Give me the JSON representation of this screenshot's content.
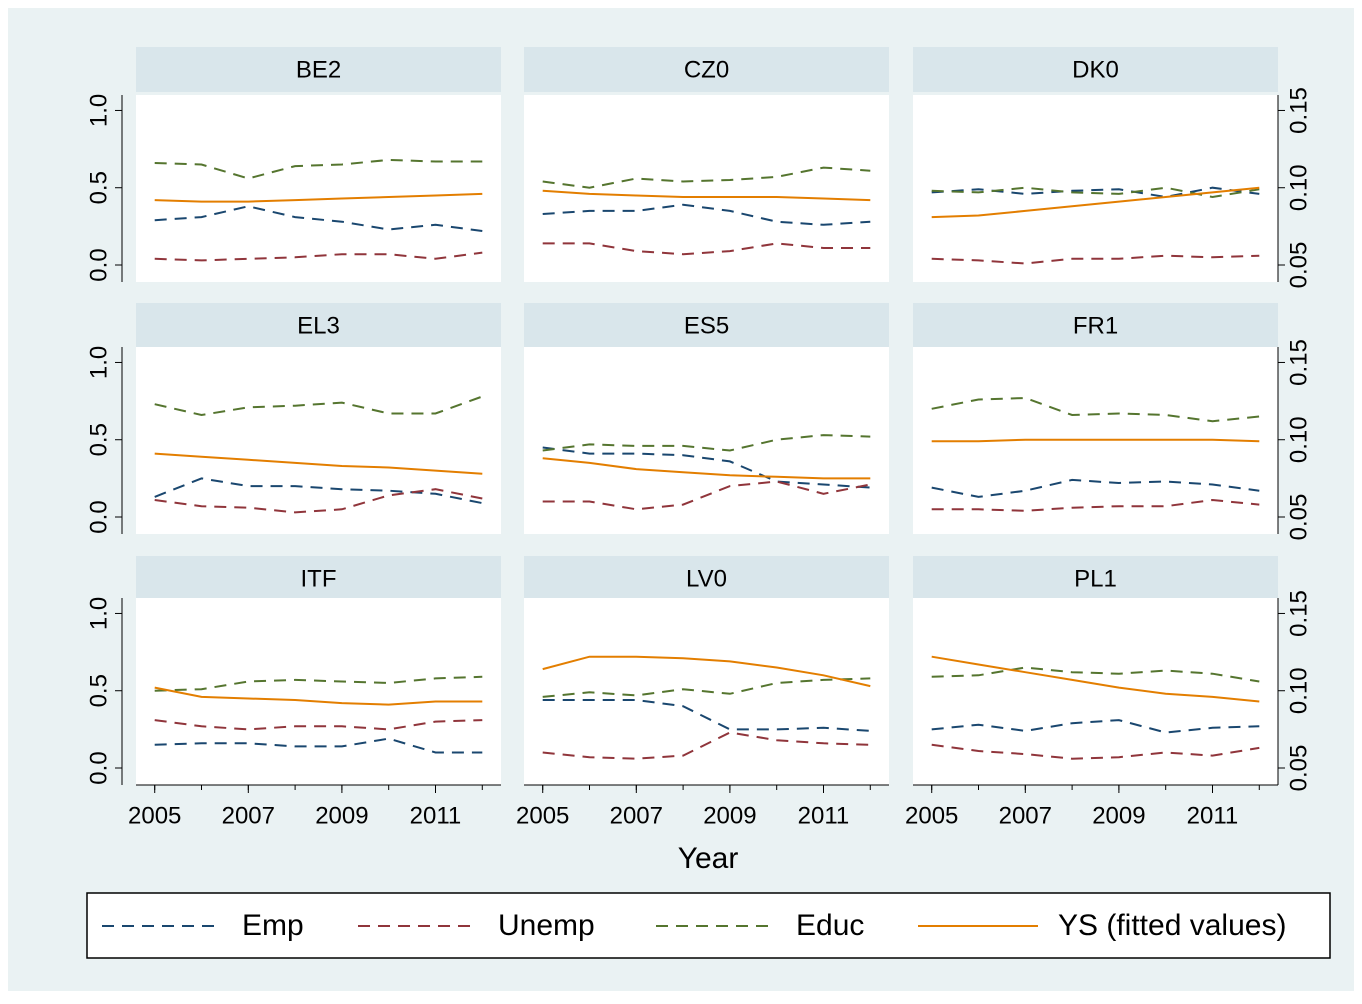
{
  "chart_data": {
    "type": "line",
    "x_label": "Year",
    "x": [
      2005,
      2006,
      2007,
      2008,
      2009,
      2010,
      2011,
      2012
    ],
    "xlim": [
      2004.6,
      2012.4
    ],
    "xticks": [
      2005,
      2007,
      2009,
      2011
    ],
    "ylim": [
      -0.11,
      1.1
    ],
    "yticks": [
      {
        "value": 0,
        "label": "0.0"
      },
      0.5,
      {
        "value": 1,
        "label": "1.0"
      }
    ],
    "y2lim": [
      0.039,
      0.16
    ],
    "y2ticks": [
      0.05,
      {
        "value": 0.1,
        "label": "0.10"
      },
      0.15
    ],
    "series": [
      {
        "name": "Emp",
        "color": "#1a476f",
        "dashed": true,
        "axis": "y"
      },
      {
        "name": "Unemp",
        "color": "#90353b",
        "dashed": true,
        "axis": "y"
      },
      {
        "name": "Educ",
        "color": "#55752f",
        "dashed": true,
        "axis": "y"
      },
      {
        "name": "YS (fitted values)",
        "color": "#e37e00",
        "dashed": false,
        "axis": "y2"
      }
    ],
    "panels": [
      {
        "title": "BE2",
        "values": [
          [
            0.29,
            0.31,
            0.38,
            0.31,
            0.28,
            0.23,
            0.26,
            0.22
          ],
          [
            0.04,
            0.03,
            0.04,
            0.05,
            0.07,
            0.07,
            0.04,
            0.08
          ],
          [
            0.66,
            0.65,
            0.56,
            0.64,
            0.65,
            0.68,
            0.67,
            0.67
          ],
          [
            0.092,
            0.091,
            0.091,
            0.092,
            0.093,
            0.094,
            0.095,
            0.096
          ]
        ]
      },
      {
        "title": "CZ0",
        "values": [
          [
            0.33,
            0.35,
            0.35,
            0.39,
            0.35,
            0.28,
            0.26,
            0.28
          ],
          [
            0.14,
            0.14,
            0.09,
            0.07,
            0.09,
            0.14,
            0.11,
            0.11
          ],
          [
            0.54,
            0.5,
            0.56,
            0.54,
            0.55,
            0.57,
            0.63,
            0.61
          ],
          [
            0.098,
            0.096,
            0.095,
            0.094,
            0.094,
            0.094,
            0.093,
            0.092
          ]
        ]
      },
      {
        "title": "DK0",
        "values": [
          [
            0.47,
            0.49,
            0.46,
            0.48,
            0.49,
            0.44,
            0.5,
            0.46
          ],
          [
            0.04,
            0.03,
            0.01,
            0.04,
            0.04,
            0.06,
            0.05,
            0.06
          ],
          [
            0.48,
            0.47,
            0.5,
            0.47,
            0.46,
            0.5,
            0.44,
            0.49
          ],
          [
            0.081,
            0.082,
            0.085,
            0.088,
            0.091,
            0.094,
            0.097,
            0.1
          ]
        ]
      },
      {
        "title": "EL3",
        "values": [
          [
            0.13,
            0.25,
            0.2,
            0.2,
            0.18,
            0.17,
            0.15,
            0.09
          ],
          [
            0.11,
            0.07,
            0.06,
            0.03,
            0.05,
            0.14,
            0.18,
            0.12
          ],
          [
            0.73,
            0.66,
            0.71,
            0.72,
            0.74,
            0.67,
            0.67,
            0.78
          ],
          [
            0.091,
            0.089,
            0.087,
            0.085,
            0.083,
            0.082,
            0.08,
            0.078
          ]
        ]
      },
      {
        "title": "ES5",
        "values": [
          [
            0.45,
            0.41,
            0.41,
            0.4,
            0.36,
            0.23,
            0.21,
            0.19
          ],
          [
            0.1,
            0.1,
            0.05,
            0.08,
            0.2,
            0.23,
            0.15,
            0.21
          ],
          [
            0.43,
            0.47,
            0.46,
            0.46,
            0.43,
            0.5,
            0.53,
            0.52
          ],
          [
            0.088,
            0.085,
            0.081,
            0.079,
            0.077,
            0.076,
            0.075,
            0.075
          ]
        ]
      },
      {
        "title": "FR1",
        "values": [
          [
            0.19,
            0.13,
            0.17,
            0.24,
            0.22,
            0.23,
            0.21,
            0.17
          ],
          [
            0.05,
            0.05,
            0.04,
            0.06,
            0.07,
            0.07,
            0.11,
            0.08
          ],
          [
            0.7,
            0.76,
            0.77,
            0.66,
            0.67,
            0.66,
            0.62,
            0.65
          ],
          [
            0.099,
            0.099,
            0.1,
            0.1,
            0.1,
            0.1,
            0.1,
            0.099
          ]
        ]
      },
      {
        "title": "ITF",
        "values": [
          [
            0.15,
            0.16,
            0.16,
            0.14,
            0.14,
            0.19,
            0.1,
            0.1
          ],
          [
            0.31,
            0.27,
            0.25,
            0.27,
            0.27,
            0.25,
            0.3,
            0.31
          ],
          [
            0.5,
            0.51,
            0.56,
            0.57,
            0.56,
            0.55,
            0.58,
            0.59
          ],
          [
            0.102,
            0.096,
            0.095,
            0.094,
            0.092,
            0.091,
            0.093,
            0.093
          ]
        ]
      },
      {
        "title": "LV0",
        "values": [
          [
            0.44,
            0.44,
            0.44,
            0.4,
            0.25,
            0.25,
            0.26,
            0.24
          ],
          [
            0.1,
            0.07,
            0.06,
            0.08,
            0.23,
            0.18,
            0.16,
            0.15
          ],
          [
            0.46,
            0.49,
            0.47,
            0.51,
            0.48,
            0.55,
            0.57,
            0.58
          ],
          [
            0.114,
            0.122,
            0.122,
            0.121,
            0.119,
            0.115,
            0.11,
            0.103
          ]
        ]
      },
      {
        "title": "PL1",
        "values": [
          [
            0.25,
            0.28,
            0.24,
            0.29,
            0.31,
            0.23,
            0.26,
            0.27
          ],
          [
            0.15,
            0.11,
            0.09,
            0.06,
            0.07,
            0.1,
            0.08,
            0.13
          ],
          [
            0.59,
            0.6,
            0.65,
            0.62,
            0.61,
            0.63,
            0.61,
            0.56
          ],
          [
            0.122,
            0.117,
            0.112,
            0.107,
            0.102,
            0.098,
            0.096,
            0.093
          ]
        ]
      }
    ]
  }
}
